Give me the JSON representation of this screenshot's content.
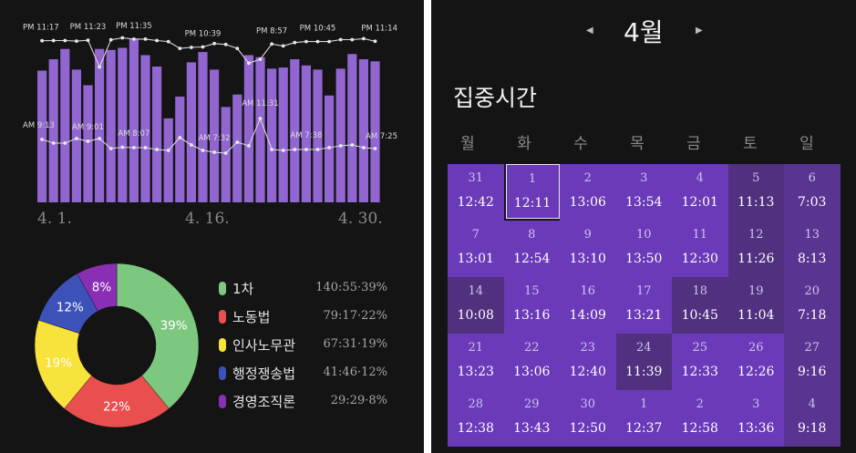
{
  "colors": {
    "bar": "#9166d0",
    "cal_normal": "#6a3ab8",
    "cal_dim": "#50307f",
    "cal_sunday": "#5a3491"
  },
  "chart_data": [
    {
      "type": "bar",
      "x_tick_labels": [
        "4. 1.",
        "4. 16.",
        "4. 30."
      ],
      "values": [
        12.7,
        13.8,
        14.8,
        12.8,
        11.3,
        14.8,
        14.7,
        14.9,
        15.8,
        14.2,
        13.1,
        8.1,
        10.2,
        13.5,
        14.5,
        12.8,
        9.2,
        10.4,
        14.2,
        14.0,
        12.9,
        13.0,
        13.8,
        13.2,
        12.8,
        10.3,
        12.9,
        14.3,
        13.8,
        13.6
      ],
      "ylim": [
        0,
        16
      ]
    },
    {
      "type": "line",
      "series": [
        {
          "values": [
            23.28,
            23.3,
            23.3,
            23.25,
            23.33,
            20.6,
            23.38,
            23.58,
            23.45,
            23.45,
            23.3,
            23.2,
            22.5,
            22.6,
            22.65,
            23.0,
            22.9,
            22.5,
            21.0,
            21.4,
            22.95,
            22.75,
            23.1,
            23.2,
            23.2,
            23.2,
            23.4,
            23.4,
            23.5,
            23.23
          ],
          "labels": [
            "PM 11:17",
            "PM 11:23",
            "PM 11:35",
            "PM 10:39",
            "PM 8:57",
            "PM 10:45",
            "PM 11:14"
          ]
        },
        {
          "values": [
            9.2,
            8.8,
            8.8,
            9.3,
            9.0,
            9.3,
            8.2,
            8.35,
            8.3,
            8.3,
            8.1,
            8.0,
            9.4,
            8.6,
            8.0,
            7.8,
            7.7,
            8.9,
            8.5,
            11.5,
            8.1,
            8.0,
            8.1,
            8.1,
            8.1,
            8.3,
            8.5,
            8.6,
            8.3,
            8.2
          ],
          "labels": [
            "AM 9:13",
            "AM 9:01",
            "AM 8:07",
            "AM 7:32",
            "AM 11:31",
            "AM 7:38",
            "AM 7:25"
          ]
        }
      ]
    },
    {
      "type": "pie",
      "categories": [
        "1차",
        "노동법",
        "인사노무관",
        "행정쟁송법",
        "경영조직론"
      ],
      "values": [
        39,
        22,
        19,
        12,
        8
      ],
      "durations": [
        "140:55",
        "79:17",
        "67:31",
        "41:46",
        "29:29"
      ],
      "colors": [
        "#7dc87f",
        "#ea4f4f",
        "#f8e23c",
        "#3d52b8",
        "#8a2fb5"
      ]
    }
  ],
  "legend": [
    {
      "name": "1차",
      "value": "140:55·39%",
      "color": "#7dc87f"
    },
    {
      "name": "노동법",
      "value": "79:17·22%",
      "color": "#ea4f4f"
    },
    {
      "name": "인사노무관",
      "value": "67:31·19%",
      "color": "#f8e23c"
    },
    {
      "name": "행정쟁송법",
      "value": "41:46·12%",
      "color": "#3d52b8"
    },
    {
      "name": "경영조직론",
      "value": "29:29·8%",
      "color": "#8a2fb5"
    }
  ],
  "calendar": {
    "month_label": "4월",
    "prev_icon": "chevron-left-icon",
    "next_icon": "chevron-right-icon",
    "section_title": "집중시간",
    "weekdays": [
      "월",
      "화",
      "수",
      "목",
      "금",
      "토",
      "일"
    ],
    "today_index": 1,
    "cells": [
      {
        "d": "31",
        "t": "12:42",
        "s": "n"
      },
      {
        "d": "1",
        "t": "12:11",
        "s": "n"
      },
      {
        "d": "2",
        "t": "13:06",
        "s": "n"
      },
      {
        "d": "3",
        "t": "13:54",
        "s": "n"
      },
      {
        "d": "4",
        "t": "12:01",
        "s": "n"
      },
      {
        "d": "5",
        "t": "11:13",
        "s": "d"
      },
      {
        "d": "6",
        "t": "7:03",
        "s": "u"
      },
      {
        "d": "7",
        "t": "13:01",
        "s": "n"
      },
      {
        "d": "8",
        "t": "12:54",
        "s": "n"
      },
      {
        "d": "9",
        "t": "13:10",
        "s": "n"
      },
      {
        "d": "10",
        "t": "13:50",
        "s": "n"
      },
      {
        "d": "11",
        "t": "12:30",
        "s": "n"
      },
      {
        "d": "12",
        "t": "11:26",
        "s": "d"
      },
      {
        "d": "13",
        "t": "8:13",
        "s": "u"
      },
      {
        "d": "14",
        "t": "10:08",
        "s": "d"
      },
      {
        "d": "15",
        "t": "13:16",
        "s": "n"
      },
      {
        "d": "16",
        "t": "14:09",
        "s": "n"
      },
      {
        "d": "17",
        "t": "13:21",
        "s": "n"
      },
      {
        "d": "18",
        "t": "10:45",
        "s": "d"
      },
      {
        "d": "19",
        "t": "11:04",
        "s": "d"
      },
      {
        "d": "20",
        "t": "7:18",
        "s": "u"
      },
      {
        "d": "21",
        "t": "13:23",
        "s": "n"
      },
      {
        "d": "22",
        "t": "13:06",
        "s": "n"
      },
      {
        "d": "23",
        "t": "12:40",
        "s": "n"
      },
      {
        "d": "24",
        "t": "11:39",
        "s": "d"
      },
      {
        "d": "25",
        "t": "12:33",
        "s": "n"
      },
      {
        "d": "26",
        "t": "12:26",
        "s": "n"
      },
      {
        "d": "27",
        "t": "9:16",
        "s": "u"
      },
      {
        "d": "28",
        "t": "12:38",
        "s": "n"
      },
      {
        "d": "29",
        "t": "13:43",
        "s": "n"
      },
      {
        "d": "30",
        "t": "12:50",
        "s": "n"
      },
      {
        "d": "1",
        "t": "12:37",
        "s": "n"
      },
      {
        "d": "2",
        "t": "12:58",
        "s": "n"
      },
      {
        "d": "3",
        "t": "13:36",
        "s": "n"
      },
      {
        "d": "4",
        "t": "9:18",
        "s": "u"
      }
    ]
  }
}
